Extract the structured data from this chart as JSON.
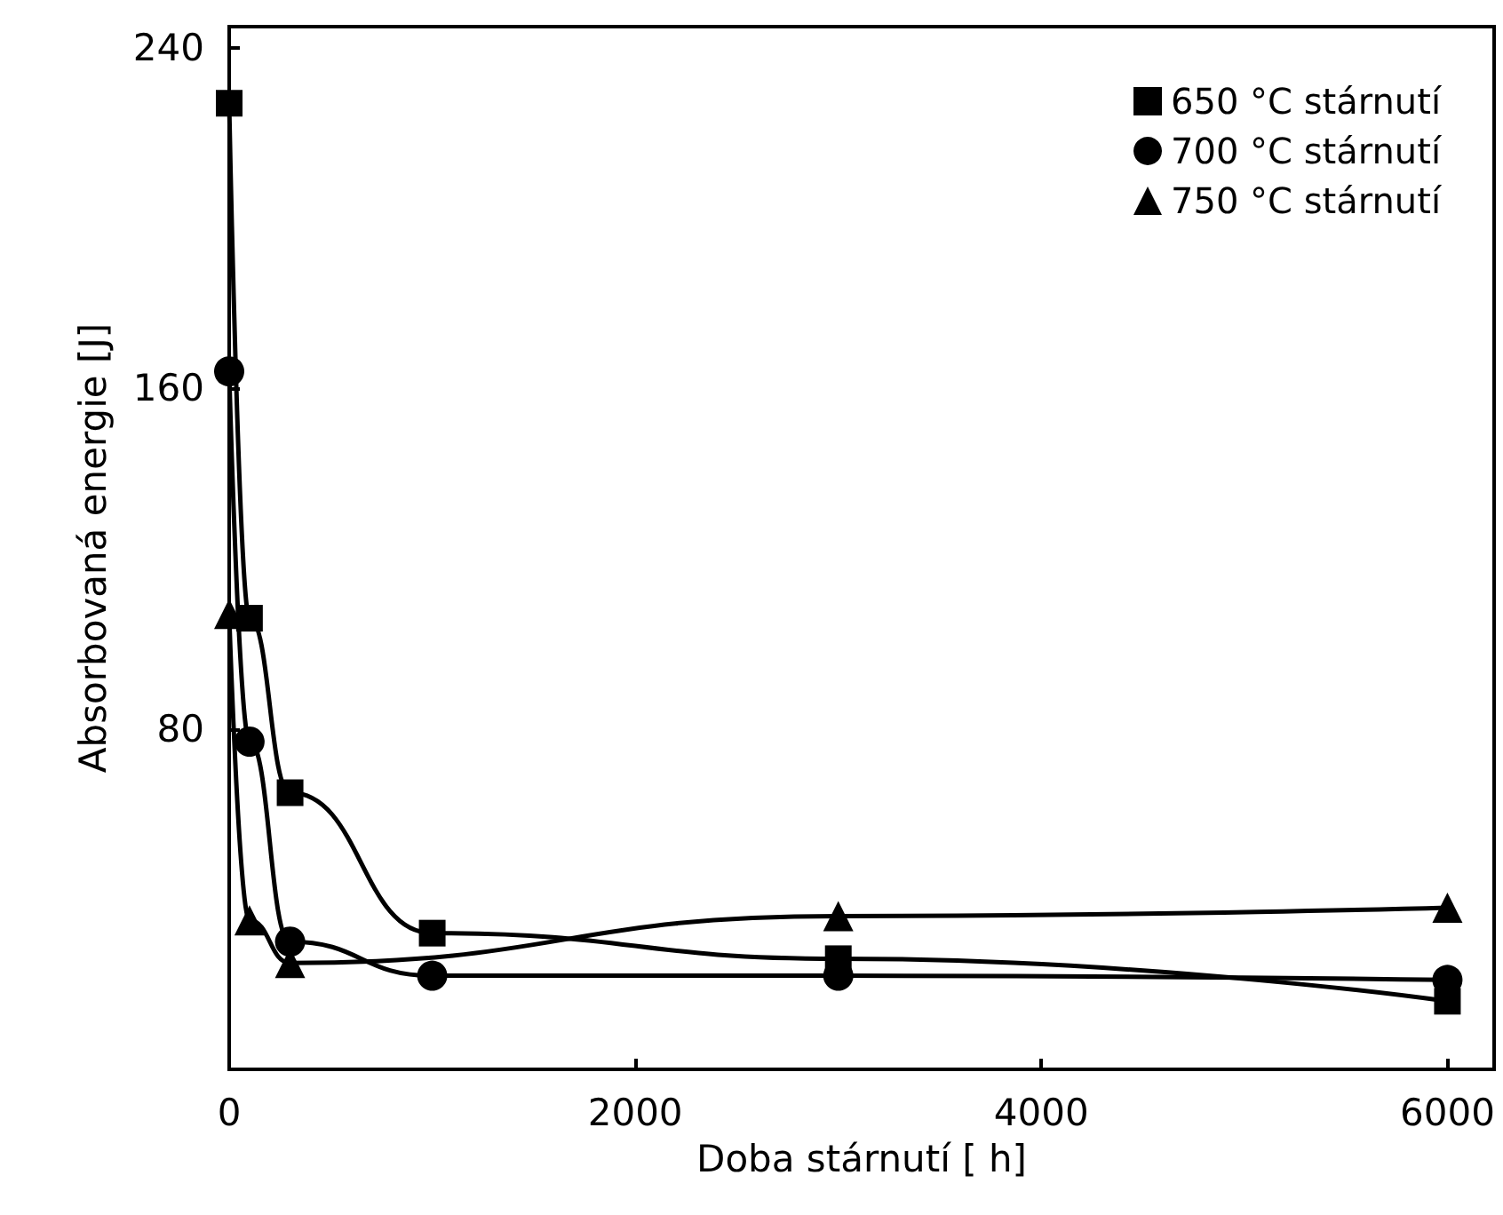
{
  "chart_data": {
    "type": "line",
    "xlabel": "Doba stárnutí [ h]",
    "ylabel": "Absorbovaná energie [J]",
    "xlim": [
      0,
      6230
    ],
    "ylim": [
      0,
      245
    ],
    "xticks": [
      0,
      2000,
      4000,
      6000
    ],
    "yticks": [
      80,
      160,
      240
    ],
    "grid": false,
    "legend": "top right",
    "line_style": "solid",
    "series": [
      {
        "name": "650 °C stárnutí",
        "color": "#000000",
        "marker": "square",
        "x": [
          0,
          100,
          300,
          1000,
          3000,
          6000
        ],
        "values": [
          227,
          106,
          65,
          32,
          26,
          16
        ]
      },
      {
        "name": "700 °C stárnutí",
        "color": "#000000",
        "marker": "circle",
        "x": [
          0,
          100,
          300,
          1000,
          3000,
          6000
        ],
        "values": [
          164,
          77,
          30,
          22,
          22,
          21
        ]
      },
      {
        "name": "750 °C stárnutí",
        "color": "#000000",
        "marker": "triangle",
        "x": [
          0,
          100,
          300,
          3000,
          6000
        ],
        "values": [
          107,
          35,
          25,
          36,
          38
        ]
      }
    ]
  }
}
